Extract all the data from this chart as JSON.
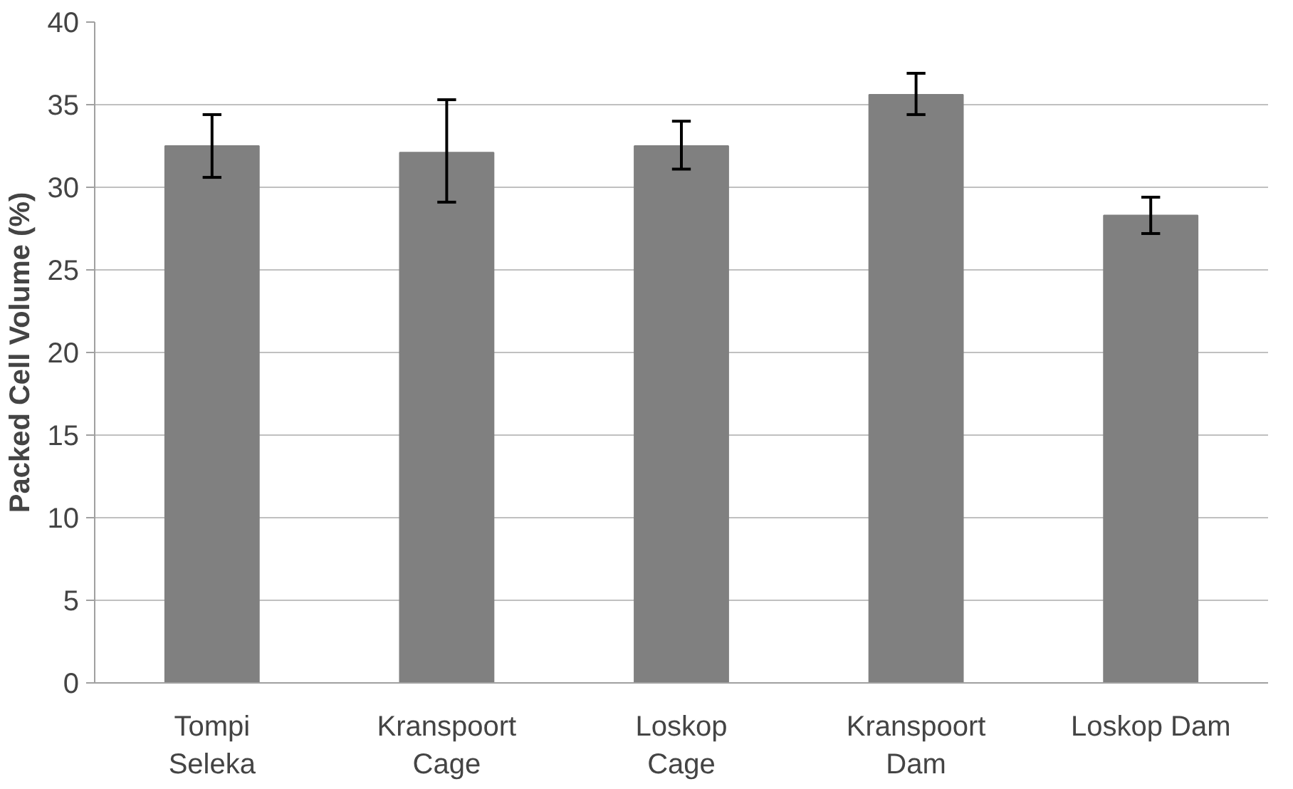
{
  "chart_data": {
    "type": "bar",
    "ylabel": "Packed Cell Volume (%)",
    "categories": [
      "Tompi Seleka",
      "Kranspoort Cage",
      "Loskop Cage",
      "Kranspoort Dam",
      "Loskop Dam"
    ],
    "values": [
      32.5,
      32.1,
      32.5,
      35.6,
      28.3
    ],
    "errors": [
      [
        30.6,
        34.4
      ],
      [
        29.1,
        35.3
      ],
      [
        31.1,
        34.0
      ],
      [
        34.4,
        36.9
      ],
      [
        27.2,
        29.4
      ]
    ],
    "color": "#808080",
    "ylim": [
      0,
      40
    ],
    "yticks": [
      0,
      5,
      10,
      15,
      20,
      25,
      30,
      35,
      40
    ],
    "grid": "y"
  }
}
